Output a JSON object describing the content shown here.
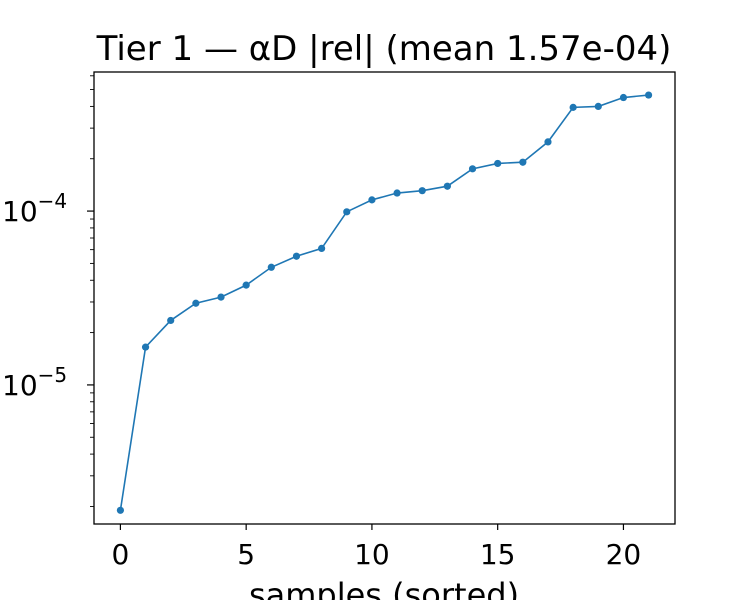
{
  "chart_data": {
    "type": "line",
    "title": "Tier 1 — αD |rel| (mean 1.57e-04)",
    "xlabel": "samples (sorted)",
    "ylabel": "",
    "yscale": "log",
    "xlim": [
      -1.05,
      22.05
    ],
    "ylim_log10": [
      -5.8,
      -3.2
    ],
    "x_ticks": [
      0,
      5,
      10,
      15,
      20
    ],
    "y_major_ticks": [
      {
        "exp": -4,
        "base": "10",
        "sup": "−4"
      },
      {
        "exp": -5,
        "base": "10",
        "sup": "−5"
      }
    ],
    "series": [
      {
        "name": "αD |rel|",
        "color": "#1f77b4",
        "x": [
          0,
          1,
          2,
          3,
          4,
          5,
          6,
          7,
          8,
          9,
          10,
          11,
          12,
          13,
          14,
          15,
          16,
          17,
          18,
          19,
          20,
          21
        ],
        "values": [
          1.9e-06,
          1.65e-05,
          2.35e-05,
          2.95e-05,
          3.2e-05,
          3.75e-05,
          4.75e-05,
          5.5e-05,
          6.1e-05,
          9.9e-05,
          0.000116,
          0.000127,
          0.000131,
          0.000139,
          0.000175,
          0.000188,
          0.000191,
          0.00025,
          0.000395,
          0.0004,
          0.00045,
          0.000465
        ]
      }
    ]
  }
}
